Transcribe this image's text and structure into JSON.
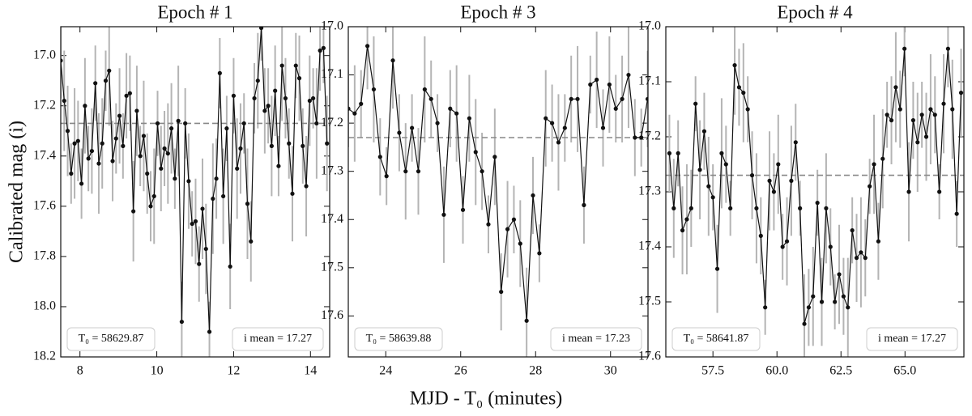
{
  "xlabel": "MJD - T₀ (minutes)",
  "ylabel": "Calibrated mag (i)",
  "chart_data": [
    {
      "type": "line",
      "title": "Epoch # 1",
      "x": [
        7.5,
        7.59,
        7.68,
        7.77,
        7.86,
        7.95,
        8.04,
        8.13,
        8.22,
        8.31,
        8.4,
        8.49,
        8.58,
        8.67,
        8.76,
        8.85,
        8.94,
        9.03,
        9.12,
        9.21,
        9.3,
        9.39,
        9.48,
        9.57,
        9.66,
        9.75,
        9.84,
        9.93,
        10.02,
        10.11,
        10.2,
        10.29,
        10.38,
        10.47,
        10.56,
        10.65,
        10.74,
        10.83,
        10.92,
        11.01,
        11.1,
        11.19,
        11.28,
        11.37,
        11.46,
        11.55,
        11.64,
        11.73,
        11.82,
        11.91,
        12.0,
        12.09,
        12.18,
        12.27,
        12.36,
        12.45,
        12.54,
        12.63,
        12.72,
        12.81,
        12.9,
        12.99,
        13.08,
        13.17,
        13.26,
        13.35,
        13.44,
        13.53,
        13.62,
        13.71,
        13.8,
        13.89,
        13.98,
        14.07,
        14.16,
        14.25,
        14.34,
        14.43
      ],
      "values": [
        17.02,
        17.18,
        17.3,
        17.47,
        17.35,
        17.34,
        17.51,
        17.2,
        17.41,
        17.38,
        17.11,
        17.43,
        17.35,
        17.1,
        17.06,
        17.42,
        17.33,
        17.24,
        17.36,
        17.16,
        17.15,
        17.62,
        17.22,
        17.4,
        17.32,
        17.47,
        17.6,
        17.56,
        17.27,
        17.45,
        17.37,
        17.39,
        17.29,
        17.49,
        17.26,
        18.06,
        17.27,
        17.5,
        17.67,
        17.66,
        17.83,
        17.61,
        17.77,
        18.1,
        17.57,
        17.49,
        17.07,
        17.56,
        17.29,
        17.84,
        17.16,
        17.45,
        17.37,
        17.27,
        17.59,
        17.74,
        17.17,
        17.1,
        16.89,
        17.22,
        17.2,
        17.36,
        17.14,
        17.44,
        17.04,
        17.17,
        17.35,
        17.55,
        17.04,
        17.09,
        17.36,
        17.52,
        17.18,
        17.17,
        17.27,
        16.98,
        16.97,
        17.35
      ],
      "errors": [
        0.15,
        0.2,
        0.18,
        0.12,
        0.22,
        0.16,
        0.14,
        0.19,
        0.13,
        0.17,
        0.15,
        0.2,
        0.18,
        0.12,
        0.22,
        0.16,
        0.14,
        0.19,
        0.13,
        0.17,
        0.15,
        0.2,
        0.18,
        0.12,
        0.22,
        0.16,
        0.14,
        0.19,
        0.13,
        0.17,
        0.15,
        0.2,
        0.18,
        0.12,
        0.22,
        0.16,
        0.14,
        0.19,
        0.13,
        0.17,
        0.15,
        0.2,
        0.18,
        0.12,
        0.22,
        0.16,
        0.14,
        0.19,
        0.13,
        0.17,
        0.15,
        0.2,
        0.18,
        0.12,
        0.22,
        0.16,
        0.14,
        0.19,
        0.13,
        0.17,
        0.15,
        0.2,
        0.18,
        0.12,
        0.22,
        0.16,
        0.14,
        0.19,
        0.13,
        0.17,
        0.15,
        0.2,
        0.18,
        0.12,
        0.22,
        0.16,
        0.14,
        0.19
      ],
      "xlim": [
        7.5,
        14.5
      ],
      "ylim": [
        18.2,
        16.885
      ],
      "xticks": [
        8,
        10,
        12,
        14
      ],
      "yticks": [
        {
          "value": 17,
          "label": "17.0"
        },
        17.2,
        17.4,
        17.6,
        17.8,
        {
          "value": 18,
          "label": "18.0"
        },
        18.2
      ],
      "mean": 17.27,
      "annotations": [
        "T₀ = 58629.87",
        "i mean = 17.27"
      ]
    },
    {
      "type": "line",
      "title": "Epoch # 3",
      "x": [
        23,
        23.17,
        23.34,
        23.51,
        23.68,
        23.85,
        24.02,
        24.19,
        24.36,
        24.53,
        24.7,
        24.87,
        25.04,
        25.21,
        25.38,
        25.55,
        25.72,
        25.89,
        26.06,
        26.23,
        26.4,
        26.57,
        26.74,
        26.91,
        27.08,
        27.25,
        27.42,
        27.59,
        27.76,
        27.93,
        28.1,
        28.27,
        28.44,
        28.61,
        28.78,
        28.95,
        29.12,
        29.29,
        29.46,
        29.63,
        29.8,
        29.97,
        30.14,
        30.31,
        30.48,
        30.65,
        30.82,
        30.99
      ],
      "values": [
        17.17,
        17.18,
        17.16,
        17.04,
        17.13,
        17.27,
        17.31,
        17.07,
        17.22,
        17.3,
        17.21,
        17.3,
        17.13,
        17.15,
        17.2,
        17.39,
        17.17,
        17.18,
        17.38,
        17.19,
        17.26,
        17.3,
        17.41,
        17.27,
        17.55,
        17.42,
        17.4,
        17.45,
        17.61,
        17.35,
        17.47,
        17.19,
        17.2,
        17.24,
        17.21,
        17.15,
        17.15,
        17.37,
        17.12,
        17.11,
        17.21,
        17.12,
        17.17,
        17.15,
        17.1,
        17.23,
        17.23,
        17.15
      ],
      "errors": [
        0.08,
        0.1,
        0.07,
        0.09,
        0.11,
        0.08,
        0.06,
        0.1,
        0.08,
        0.1,
        0.07,
        0.09,
        0.11,
        0.08,
        0.06,
        0.1,
        0.08,
        0.1,
        0.07,
        0.09,
        0.11,
        0.08,
        0.06,
        0.1,
        0.08,
        0.1,
        0.07,
        0.09,
        0.11,
        0.08,
        0.06,
        0.1,
        0.08,
        0.1,
        0.07,
        0.09,
        0.11,
        0.08,
        0.06,
        0.1,
        0.08,
        0.1,
        0.07,
        0.09,
        0.11,
        0.08,
        0.06,
        0.1
      ],
      "xlim": [
        23,
        31
      ],
      "ylim": [
        17.685,
        17.0
      ],
      "xticks": [
        24,
        26,
        28,
        30
      ],
      "yticks": [
        {
          "value": 17,
          "label": "17.0"
        },
        17.1,
        17.2,
        17.3,
        17.4,
        17.5,
        17.6
      ],
      "mean": 17.23,
      "annotations": [
        "T₀ = 58639.88",
        "i mean = 17.23"
      ]
    },
    {
      "type": "line",
      "title": "Epoch # 4",
      "x": [
        55.8,
        55.97,
        56.14,
        56.31,
        56.48,
        56.65,
        56.82,
        56.99,
        57.16,
        57.33,
        57.5,
        57.67,
        57.84,
        58.01,
        58.18,
        58.35,
        58.52,
        58.69,
        58.86,
        59.03,
        59.2,
        59.37,
        59.54,
        59.71,
        59.88,
        60.05,
        60.22,
        60.39,
        60.56,
        60.73,
        60.9,
        61.07,
        61.24,
        61.41,
        61.58,
        61.75,
        61.92,
        62.09,
        62.26,
        62.43,
        62.6,
        62.77,
        62.94,
        63.11,
        63.28,
        63.45,
        63.62,
        63.79,
        63.96,
        64.13,
        64.3,
        64.47,
        64.64,
        64.81,
        64.98,
        65.15,
        65.32,
        65.49,
        65.66,
        65.83,
        66.0,
        66.17,
        66.34,
        66.51,
        66.68,
        66.85,
        67.02,
        67.19
      ],
      "values": [
        17.23,
        17.33,
        17.23,
        17.37,
        17.35,
        17.33,
        17.14,
        17.26,
        17.19,
        17.29,
        17.31,
        17.44,
        17.23,
        17.25,
        17.33,
        17.07,
        17.11,
        17.12,
        17.15,
        17.27,
        17.33,
        17.38,
        17.51,
        17.28,
        17.3,
        17.25,
        17.4,
        17.39,
        17.28,
        17.21,
        17.33,
        17.54,
        17.51,
        17.49,
        17.32,
        17.5,
        17.33,
        17.4,
        17.5,
        17.45,
        17.49,
        17.51,
        17.37,
        17.42,
        17.41,
        17.42,
        17.29,
        17.25,
        17.39,
        17.24,
        17.16,
        17.17,
        17.11,
        17.15,
        17.04,
        17.3,
        17.17,
        17.21,
        17.16,
        17.2,
        17.15,
        17.16,
        17.3,
        17.14,
        17.04,
        17.15,
        17.34,
        17.12
      ],
      "errors": [
        0.07,
        0.09,
        0.06,
        0.08,
        0.1,
        0.07,
        0.05,
        0.09,
        0.07,
        0.09,
        0.06,
        0.08,
        0.1,
        0.07,
        0.05,
        0.09,
        0.07,
        0.09,
        0.06,
        0.08,
        0.1,
        0.07,
        0.05,
        0.09,
        0.07,
        0.09,
        0.06,
        0.08,
        0.1,
        0.07,
        0.05,
        0.09,
        0.07,
        0.09,
        0.06,
        0.08,
        0.1,
        0.07,
        0.05,
        0.09,
        0.07,
        0.09,
        0.06,
        0.08,
        0.1,
        0.07,
        0.05,
        0.09,
        0.07,
        0.09,
        0.06,
        0.08,
        0.1,
        0.07,
        0.05,
        0.09,
        0.07,
        0.09,
        0.06,
        0.08,
        0.1,
        0.07,
        0.05,
        0.09,
        0.07,
        0.09,
        0.06,
        0.08
      ],
      "xlim": [
        55.66,
        67.3
      ],
      "ylim": [
        17.6,
        17.0
      ],
      "xticks": [
        57.5,
        {
          "value": 60,
          "label": "60.0"
        },
        62.5,
        {
          "value": 65,
          "label": "65.0"
        }
      ],
      "yticks": [
        {
          "value": 17,
          "label": "17.0"
        },
        17.1,
        17.2,
        17.3,
        17.4,
        17.5,
        17.6
      ],
      "mean": 17.27,
      "annotations": [
        "T₀ = 58641.87",
        "i mean = 17.27"
      ]
    }
  ]
}
